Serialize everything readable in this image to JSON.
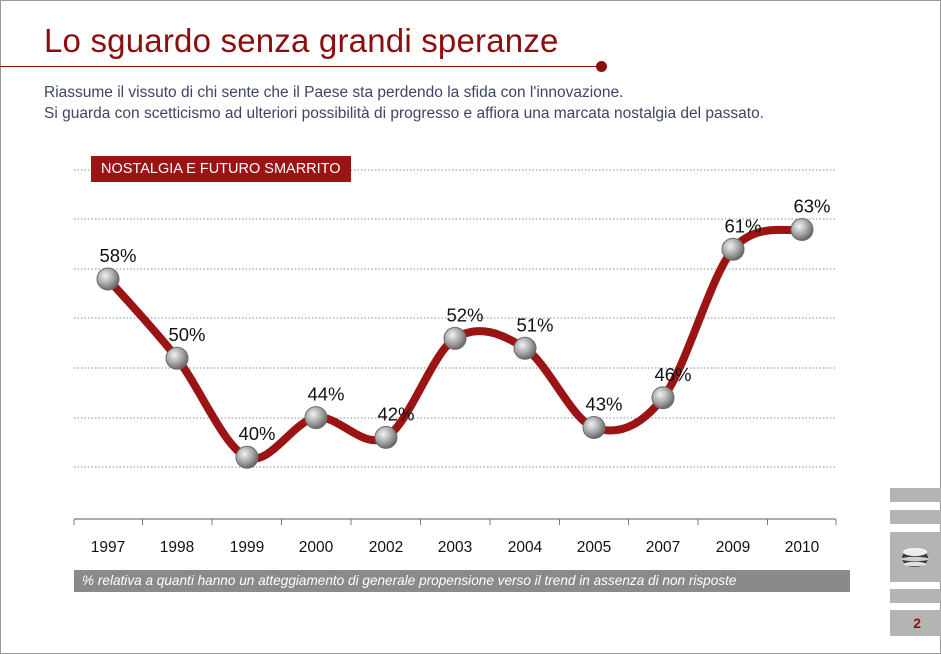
{
  "header": {
    "title": "Lo sguardo senza grandi speranze",
    "subtitle_line1": "Riassume il vissuto di chi sente che il Paese sta perdendo la sfida con l'innovazione.",
    "subtitle_line2": "Si guarda con scetticismo ad ulteriori possibilità di progresso e affiora una marcata nostalgia del passato."
  },
  "badge": {
    "label": "NOSTALGIA E FUTURO SMARRITO"
  },
  "footnote": "% relativa a quanti hanno un atteggiamento di generale propensione verso  il trend in assenza di non risposte",
  "page": {
    "number": "2"
  },
  "colors": {
    "accent": "#9b1414",
    "gray": "#8a8a8a",
    "text_blue": "#3d4563"
  },
  "chart_data": {
    "type": "line",
    "categories": [
      "1997",
      "1998",
      "1999",
      "2000",
      "2002",
      "2003",
      "2004",
      "2005",
      "2007",
      "2009",
      "2010"
    ],
    "values": [
      58,
      50,
      40,
      44,
      42,
      52,
      51,
      43,
      46,
      61,
      63
    ],
    "labels": [
      "58%",
      "50%",
      "40%",
      "44%",
      "42%",
      "52%",
      "51%",
      "43%",
      "46%",
      "61%",
      "63%"
    ],
    "title": "NOSTALGIA E FUTURO SMARRITO",
    "xlabel": "",
    "ylabel": "",
    "grid": true,
    "line_color": "#9b1414"
  }
}
